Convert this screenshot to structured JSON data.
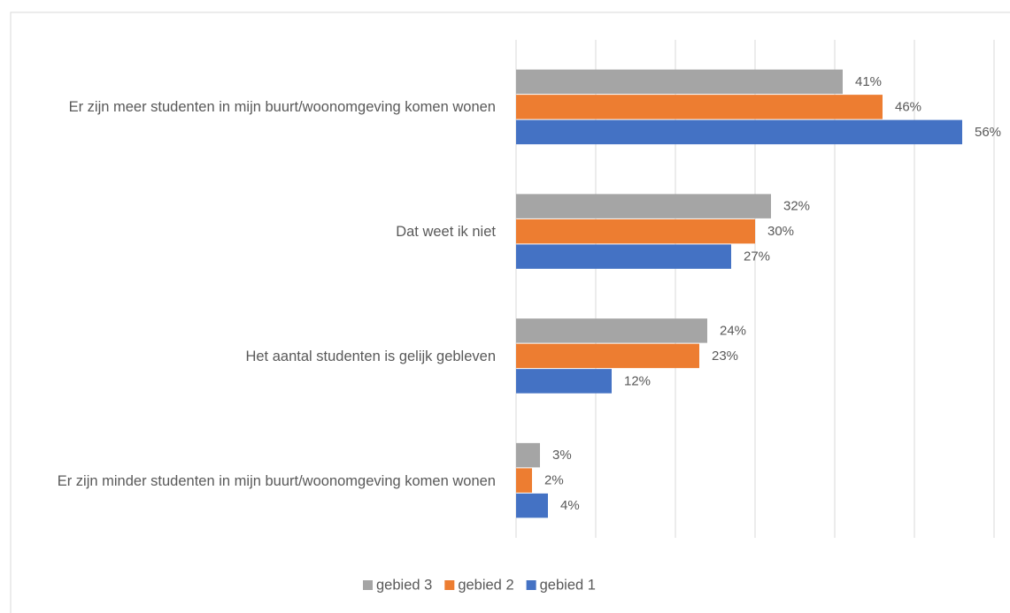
{
  "chart_data": {
    "type": "hbar",
    "categories": [
      "Er zijn meer studenten in mijn buurt/woonomgeving komen wonen",
      "Dat weet ik niet",
      "Het aantal studenten is gelijk gebleven",
      "Er zijn minder studenten in mijn buurt/woonomgeving komen wonen"
    ],
    "series": [
      {
        "name": "gebied 3",
        "color": "#a5a5a5",
        "values": [
          41,
          32,
          24,
          3
        ],
        "value_labels": [
          "41%",
          "32%",
          "24%",
          "3%"
        ]
      },
      {
        "name": "gebied 2",
        "color": "#ed7d31",
        "values": [
          46,
          30,
          23,
          2
        ],
        "value_labels": [
          "46%",
          "30%",
          "23%",
          "2%"
        ]
      },
      {
        "name": "gebied 1",
        "color": "#4472c4",
        "values": [
          56,
          27,
          12,
          4
        ],
        "value_labels": [
          "56%",
          "27%",
          "12%",
          "4%"
        ]
      }
    ],
    "xlim": [
      0,
      60
    ],
    "xticks": [
      0,
      10,
      20,
      30,
      40,
      50,
      60
    ],
    "grid": true,
    "legend": "bottom"
  }
}
